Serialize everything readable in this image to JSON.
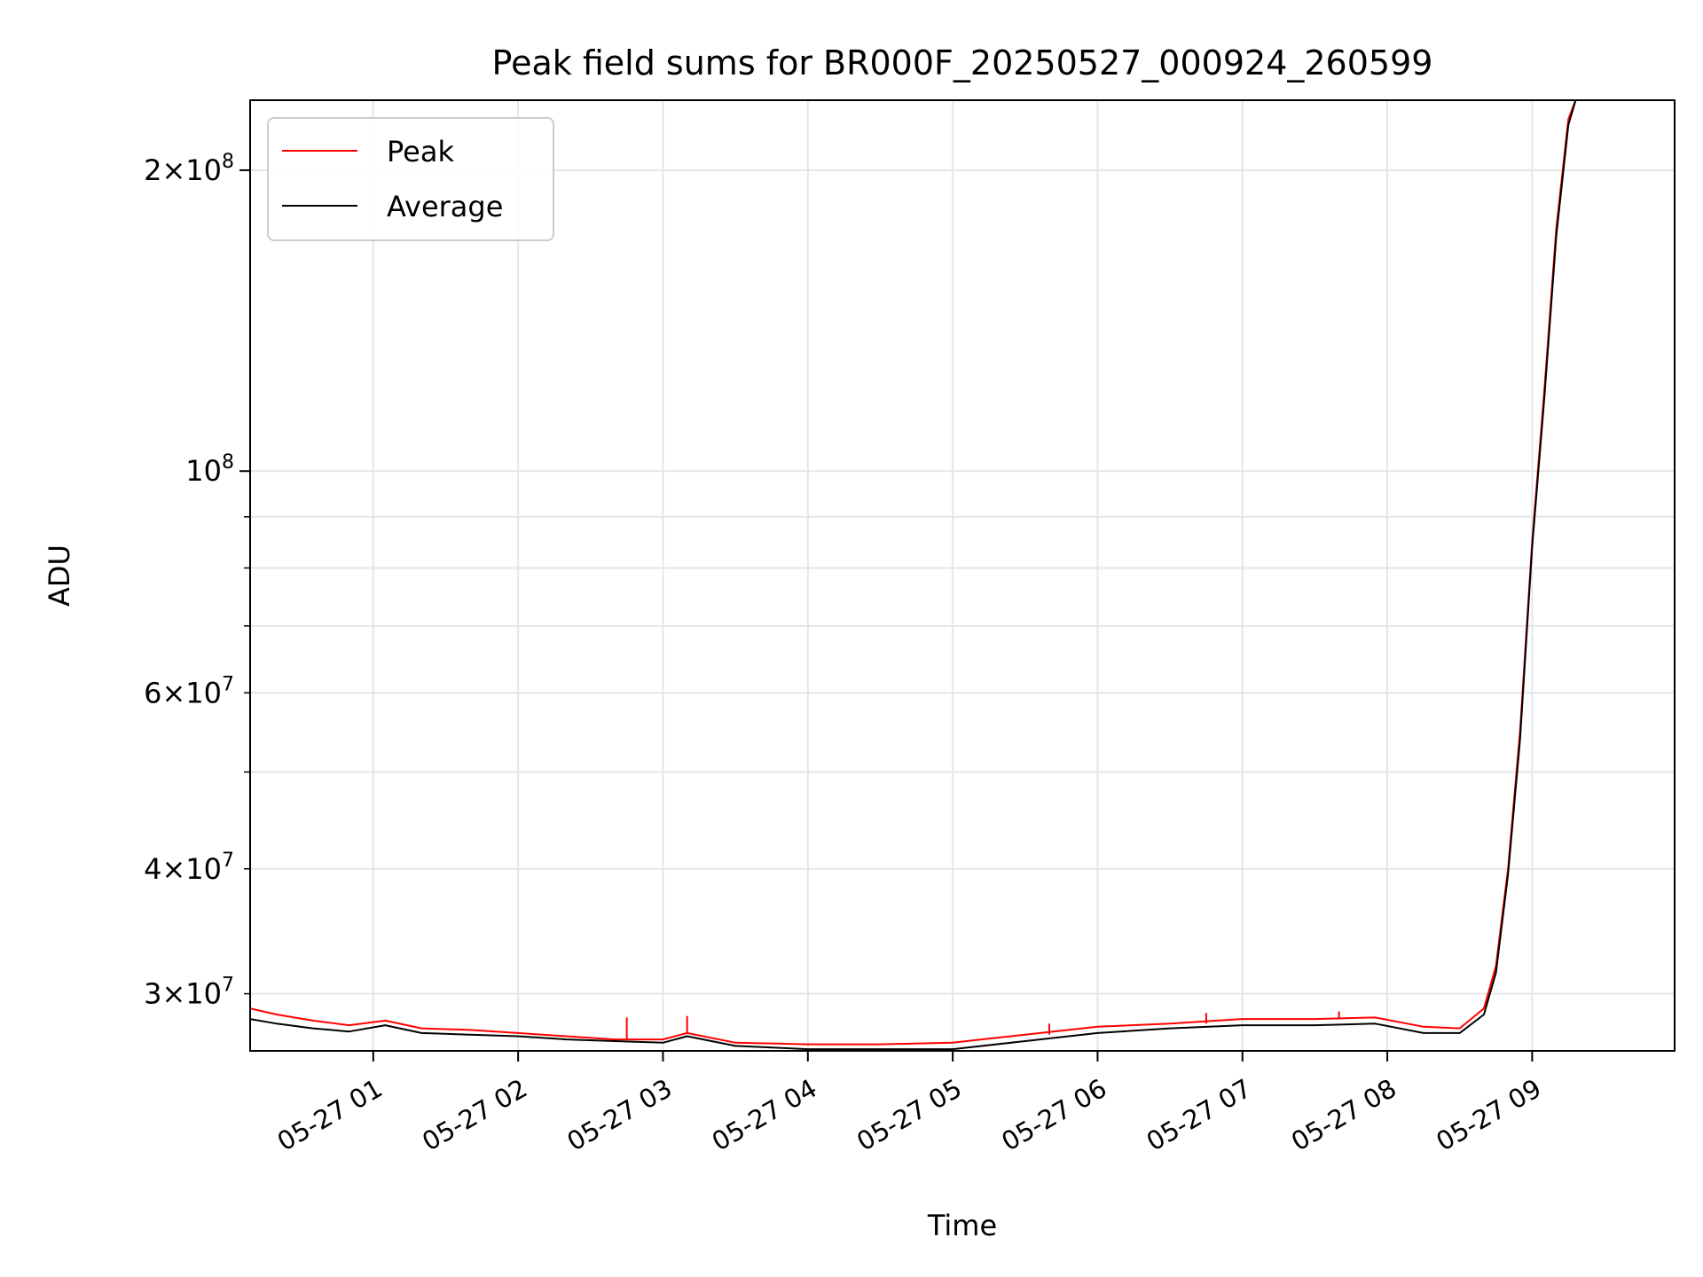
{
  "chart_data": {
    "type": "line",
    "title": "Peak field sums for BR000F_20250527_000924_260599",
    "xlabel": "Time",
    "ylabel": "ADU",
    "yscale": "log",
    "xlim": [
      "2025-05-27 00:09",
      "2025-05-27 09:59"
    ],
    "ylim": [
      26300000,
      235000000
    ],
    "grid": true,
    "legend_position": "top-left",
    "x_ticks": [
      {
        "t": "2025-05-27 01:00",
        "label": "05-27 01"
      },
      {
        "t": "2025-05-27 02:00",
        "label": "05-27 02"
      },
      {
        "t": "2025-05-27 03:00",
        "label": "05-27 03"
      },
      {
        "t": "2025-05-27 04:00",
        "label": "05-27 04"
      },
      {
        "t": "2025-05-27 05:00",
        "label": "05-27 05"
      },
      {
        "t": "2025-05-27 06:00",
        "label": "05-27 06"
      },
      {
        "t": "2025-05-27 07:00",
        "label": "05-27 07"
      },
      {
        "t": "2025-05-27 08:00",
        "label": "05-27 08"
      },
      {
        "t": "2025-05-27 09:00",
        "label": "05-27 09"
      }
    ],
    "y_major_ticks": [
      {
        "value": 100000000,
        "mantissa": "",
        "exponent": "8"
      },
      {
        "value": 200000000,
        "mantissa": "2",
        "exponent": "8"
      }
    ],
    "y_minor_ticks": [
      {
        "value": 30000000,
        "mantissa": "3",
        "exponent": "7"
      },
      {
        "value": 40000000,
        "mantissa": "4",
        "exponent": "7"
      },
      {
        "value": 50000000
      },
      {
        "value": 60000000,
        "mantissa": "6",
        "exponent": "7"
      },
      {
        "value": 70000000
      },
      {
        "value": 80000000
      },
      {
        "value": 90000000
      }
    ],
    "series": [
      {
        "name": "Peak",
        "color": "#ff0000",
        "x": [
          "2025-05-27 00:09",
          "2025-05-27 00:20",
          "2025-05-27 00:35",
          "2025-05-27 00:50",
          "2025-05-27 01:05",
          "2025-05-27 01:20",
          "2025-05-27 01:40",
          "2025-05-27 02:00",
          "2025-05-27 02:20",
          "2025-05-27 02:40",
          "2025-05-27 03:00",
          "2025-05-27 03:10",
          "2025-05-27 03:30",
          "2025-05-27 04:00",
          "2025-05-27 04:30",
          "2025-05-27 05:00",
          "2025-05-27 05:30",
          "2025-05-27 06:00",
          "2025-05-27 06:30",
          "2025-05-27 07:00",
          "2025-05-27 07:30",
          "2025-05-27 07:55",
          "2025-05-27 08:15",
          "2025-05-27 08:30",
          "2025-05-27 08:40",
          "2025-05-27 08:45",
          "2025-05-27 08:50",
          "2025-05-27 08:55",
          "2025-05-27 09:00",
          "2025-05-27 09:05",
          "2025-05-27 09:10",
          "2025-05-27 09:15",
          "2025-05-27 09:18"
        ],
        "values": [
          29000000,
          28600000,
          28200000,
          27900000,
          28200000,
          27700000,
          27600000,
          27400000,
          27200000,
          27000000,
          27000000,
          27400000,
          26800000,
          26700000,
          26700000,
          26800000,
          27300000,
          27800000,
          28000000,
          28300000,
          28300000,
          28400000,
          27800000,
          27700000,
          29000000,
          32000000,
          40000000,
          55000000,
          85000000,
          120000000,
          175000000,
          225000000,
          235000000
        ],
        "spikes": [
          {
            "x": "2025-05-27 02:45",
            "value": 28400000
          },
          {
            "x": "2025-05-27 03:10",
            "value": 28500000
          },
          {
            "x": "2025-05-27 05:40",
            "value": 28000000
          },
          {
            "x": "2025-05-27 06:45",
            "value": 28700000
          },
          {
            "x": "2025-05-27 07:40",
            "value": 28800000
          }
        ]
      },
      {
        "name": "Average",
        "color": "#000000",
        "x": [
          "2025-05-27 00:09",
          "2025-05-27 00:20",
          "2025-05-27 00:35",
          "2025-05-27 00:50",
          "2025-05-27 01:05",
          "2025-05-27 01:20",
          "2025-05-27 01:40",
          "2025-05-27 02:00",
          "2025-05-27 02:20",
          "2025-05-27 02:40",
          "2025-05-27 03:00",
          "2025-05-27 03:10",
          "2025-05-27 03:30",
          "2025-05-27 04:00",
          "2025-05-27 04:30",
          "2025-05-27 05:00",
          "2025-05-27 05:30",
          "2025-05-27 06:00",
          "2025-05-27 06:30",
          "2025-05-27 07:00",
          "2025-05-27 07:30",
          "2025-05-27 07:55",
          "2025-05-27 08:15",
          "2025-05-27 08:30",
          "2025-05-27 08:40",
          "2025-05-27 08:45",
          "2025-05-27 08:50",
          "2025-05-27 08:55",
          "2025-05-27 09:00",
          "2025-05-27 09:05",
          "2025-05-27 09:10",
          "2025-05-27 09:15",
          "2025-05-27 09:18"
        ],
        "values": [
          28300000,
          28000000,
          27700000,
          27500000,
          27900000,
          27400000,
          27300000,
          27200000,
          27000000,
          26900000,
          26800000,
          27200000,
          26600000,
          26400000,
          26400000,
          26400000,
          26900000,
          27400000,
          27700000,
          27900000,
          27900000,
          28000000,
          27400000,
          27400000,
          28600000,
          31500000,
          39500000,
          54000000,
          84000000,
          118000000,
          172000000,
          222000000,
          235000000
        ]
      }
    ]
  }
}
